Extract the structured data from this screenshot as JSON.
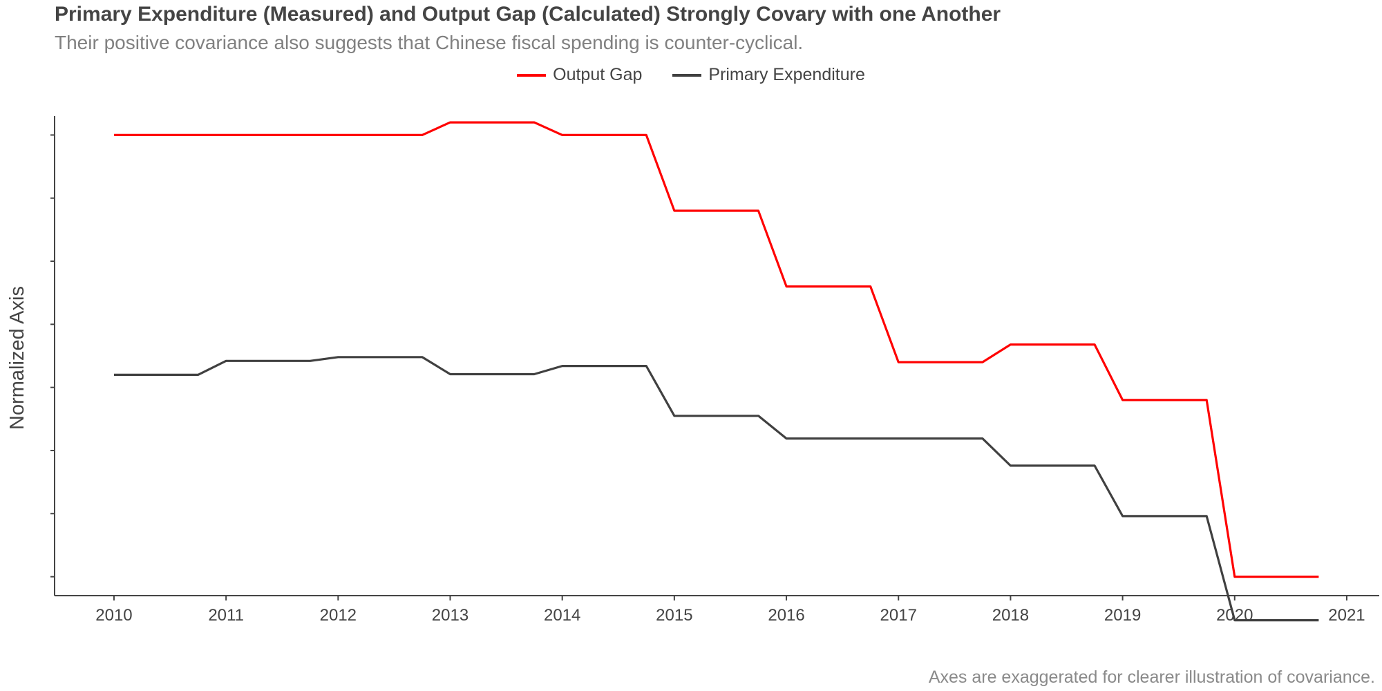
{
  "chart_data": {
    "type": "line",
    "title": "Primary Expenditure (Measured) and Output Gap (Calculated) Strongly Covary with one Another",
    "subtitle": "Their positive covariance also suggests that Chinese fiscal spending is counter-cyclical.",
    "caption": "Axes are exaggerated for clearer illustration of covariance.",
    "xlabel": "",
    "ylabel": "Normalized Axis",
    "xlim": [
      2009.47,
      2021.29
    ],
    "ylim": [
      0.7,
      8.3
    ],
    "x_ticks": [
      "2010",
      "2011",
      "2012",
      "2013",
      "2014",
      "2015",
      "2016",
      "2017",
      "2018",
      "2019",
      "2020",
      "2021"
    ],
    "y_ticks": [
      1,
      2,
      3,
      4,
      5,
      6,
      7,
      8
    ],
    "y_tick_labels_shown": false,
    "grid": false,
    "legend_position": "top",
    "x": [
      2010.0,
      2010.25,
      2010.5,
      2010.75,
      2011.0,
      2011.25,
      2011.5,
      2011.75,
      2012.0,
      2012.25,
      2012.5,
      2012.75,
      2013.0,
      2013.25,
      2013.5,
      2013.75,
      2014.0,
      2014.25,
      2014.5,
      2014.75,
      2015.0,
      2015.25,
      2015.5,
      2015.75,
      2016.0,
      2016.25,
      2016.5,
      2016.75,
      2017.0,
      2017.25,
      2017.5,
      2017.75,
      2018.0,
      2018.25,
      2018.5,
      2018.75,
      2019.0,
      2019.25,
      2019.5,
      2019.75,
      2020.0,
      2020.25,
      2020.5,
      2020.75
    ],
    "series": [
      {
        "name": "Output Gap",
        "color": "#ff0000",
        "values": [
          8.0,
          8.0,
          8.0,
          8.0,
          8.0,
          8.0,
          8.0,
          8.0,
          8.0,
          8.0,
          8.0,
          8.0,
          8.2,
          8.2,
          8.2,
          8.2,
          8.0,
          8.0,
          8.0,
          8.0,
          6.8,
          6.8,
          6.8,
          6.8,
          5.6,
          5.6,
          5.6,
          5.6,
          4.4,
          4.4,
          4.4,
          4.4,
          4.68,
          4.68,
          4.68,
          4.68,
          3.8,
          3.8,
          3.8,
          3.8,
          1.0,
          1.0,
          1.0,
          1.0
        ]
      },
      {
        "name": "Primary Expenditure",
        "color": "#404040",
        "values": [
          4.2,
          4.2,
          4.2,
          4.2,
          4.42,
          4.42,
          4.42,
          4.42,
          4.48,
          4.48,
          4.48,
          4.48,
          4.21,
          4.21,
          4.21,
          4.21,
          4.34,
          4.34,
          4.34,
          4.34,
          3.55,
          3.55,
          3.55,
          3.55,
          3.19,
          3.19,
          3.19,
          3.19,
          3.19,
          3.19,
          3.19,
          3.19,
          2.76,
          2.76,
          2.76,
          2.76,
          1.96,
          1.96,
          1.96,
          1.96,
          0.31,
          0.31,
          0.31,
          0.31
        ]
      }
    ]
  }
}
